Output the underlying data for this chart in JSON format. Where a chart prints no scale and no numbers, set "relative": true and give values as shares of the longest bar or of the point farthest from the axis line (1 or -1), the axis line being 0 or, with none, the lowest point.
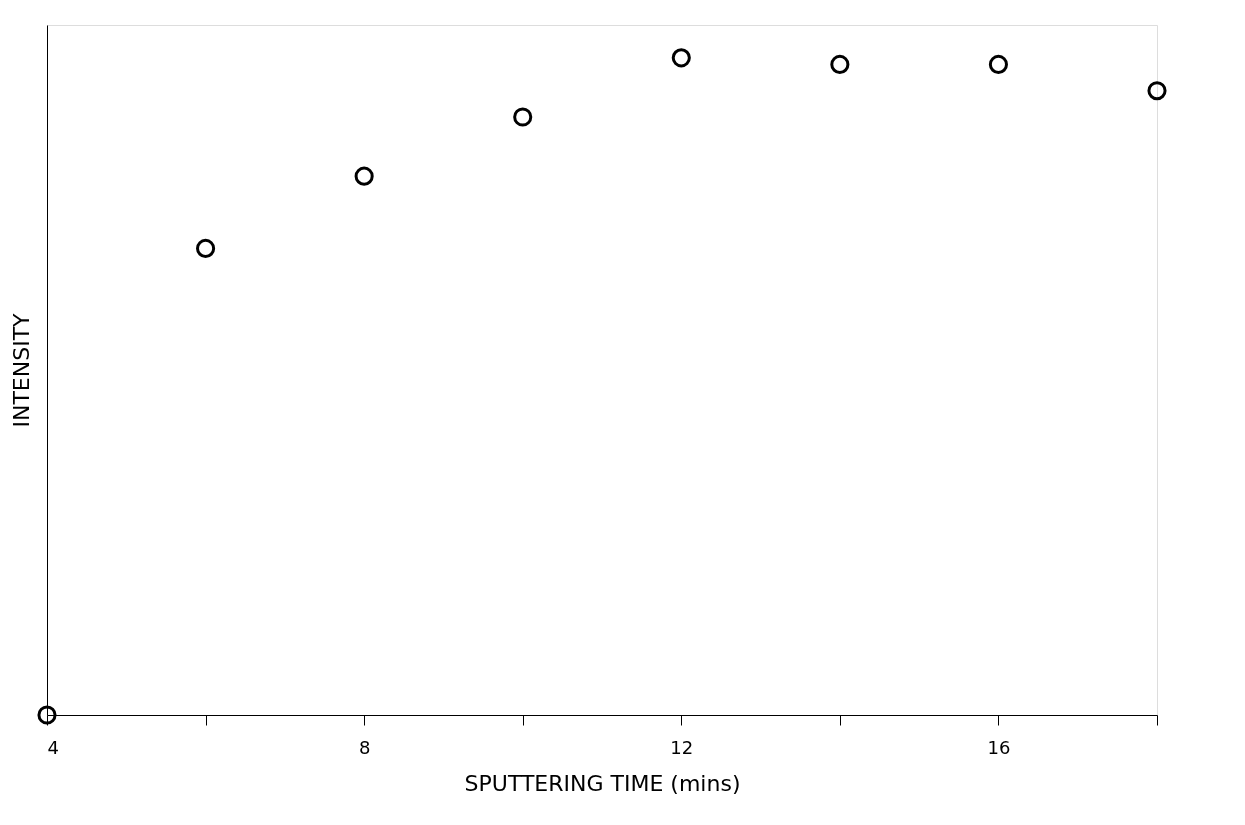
{
  "chart_data": {
    "type": "scatter",
    "xlabel": "SPUTTERING TIME (mins)",
    "ylabel": "INTENSITY",
    "x": [
      4,
      6,
      8,
      10,
      12,
      14,
      16,
      18
    ],
    "series": [
      {
        "color": "#000000",
        "values": [
          0,
          0.71,
          0.82,
          0.91,
          1,
          0.99,
          0.99,
          0.95
        ]
      }
    ],
    "relative": true,
    "xlim": [
      4,
      18
    ],
    "xticks": [
      4,
      {
        "value": 6,
        "label": null
      },
      8,
      {
        "value": 10,
        "label": null
      },
      12,
      {
        "value": 14,
        "label": null
      },
      16,
      {
        "value": 18,
        "label": null
      }
    ],
    "marker": "circle",
    "grid": false
  }
}
